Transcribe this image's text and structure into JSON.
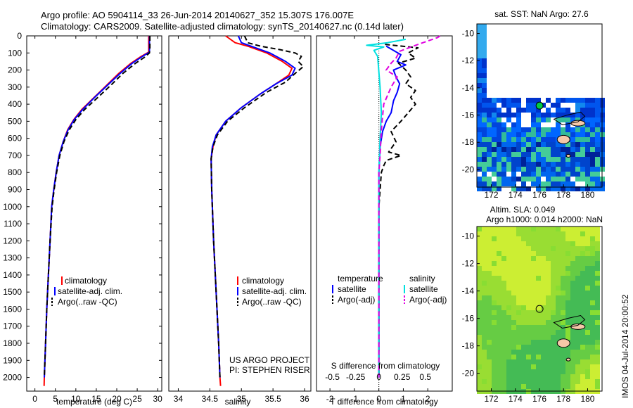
{
  "header": {
    "line1": "Argo profile: AO 5904114_33 26-Jun-2014 20140627_352 15.307S 176.007E",
    "line2": "Climatology: CARS2009. Satellite-adjusted climatology: synTS_20140627.nc (0.14d later)"
  },
  "colors": {
    "climatology": "#ff0000",
    "satellite": "#0000ff",
    "argo": "#000000",
    "sal_satellite": "#00e0e0",
    "sal_argo": "#e000e0"
  },
  "chart_data": [
    {
      "type": "line",
      "name": "temperature",
      "xlabel": "temperature (deg C)",
      "xlim": [
        -2,
        31
      ],
      "ylim": [
        2080,
        0
      ],
      "xticks": [
        0,
        5,
        10,
        15,
        20,
        25,
        30
      ],
      "yticks": [
        0,
        100,
        200,
        300,
        400,
        500,
        600,
        700,
        800,
        900,
        1000,
        1100,
        1200,
        1300,
        1400,
        1500,
        1600,
        1700,
        1800,
        1900,
        2000
      ],
      "legend": [
        "climatology",
        "satellite-adj. clim.",
        "Argo(..raw -QC)"
      ],
      "series": [
        {
          "name": "climatology",
          "style": "solid",
          "color": "#ff0000",
          "points": [
            [
              27.8,
              0
            ],
            [
              27.8,
              60
            ],
            [
              27.8,
              95
            ],
            [
              26,
              120
            ],
            [
              23.5,
              160
            ],
            [
              20.5,
              220
            ],
            [
              17.5,
              290
            ],
            [
              14.5,
              360
            ],
            [
              11.5,
              430
            ],
            [
              9.5,
              490
            ],
            [
              8,
              550
            ],
            [
              6.9,
              620
            ],
            [
              5.9,
              700
            ],
            [
              5.2,
              800
            ],
            [
              4.6,
              900
            ],
            [
              4.1,
              1000
            ],
            [
              3.7,
              1200
            ],
            [
              3.3,
              1400
            ],
            [
              2.9,
              1600
            ],
            [
              2.6,
              1800
            ],
            [
              2.3,
              2000
            ],
            [
              2.25,
              2050
            ]
          ]
        },
        {
          "name": "satellite-adj. clim.",
          "style": "solid",
          "color": "#0000ff",
          "points": [
            [
              28,
              0
            ],
            [
              28,
              60
            ],
            [
              28,
              95
            ],
            [
              26.3,
              120
            ],
            [
              23.8,
              160
            ],
            [
              20.8,
              220
            ],
            [
              17.7,
              290
            ],
            [
              14.6,
              360
            ],
            [
              11.7,
              430
            ],
            [
              9.6,
              490
            ],
            [
              8.1,
              550
            ],
            [
              6.9,
              620
            ],
            [
              5.9,
              700
            ],
            [
              5.2,
              800
            ],
            [
              4.6,
              900
            ],
            [
              4.1,
              1000
            ],
            [
              3.7,
              1200
            ],
            [
              3.3,
              1400
            ],
            [
              2.9,
              1600
            ],
            [
              2.6,
              1800
            ],
            [
              2.3,
              2000
            ]
          ]
        },
        {
          "name": "Argo(..raw -QC)",
          "style": "dashed",
          "color": "#000000",
          "points": [
            [
              28.1,
              0
            ],
            [
              28.1,
              70
            ],
            [
              28,
              100
            ],
            [
              26.8,
              125
            ],
            [
              24.6,
              160
            ],
            [
              21.5,
              220
            ],
            [
              18.5,
              290
            ],
            [
              15.4,
              360
            ],
            [
              12.2,
              430
            ],
            [
              10,
              490
            ],
            [
              8.4,
              550
            ],
            [
              7.1,
              620
            ],
            [
              6.1,
              700
            ],
            [
              5.3,
              800
            ],
            [
              4.7,
              900
            ],
            [
              4.2,
              1000
            ],
            [
              3.7,
              1200
            ],
            [
              3.3,
              1400
            ],
            [
              2.9,
              1600
            ],
            [
              2.6,
              1800
            ],
            [
              2.3,
              2000
            ]
          ]
        }
      ]
    },
    {
      "type": "line",
      "name": "salinity",
      "xlabel": "salinity",
      "xlim": [
        33.85,
        36.1
      ],
      "ylim": [
        2080,
        0
      ],
      "xticks": [
        34,
        34.5,
        35,
        35.5,
        36
      ],
      "legend": [
        "climatology",
        "satellite-adj. clim.",
        "Argo(..raw -QC)"
      ],
      "annotations": [
        "US ARGO PROJECT",
        "PI: STEPHEN RISER"
      ],
      "series": [
        {
          "name": "climatology",
          "style": "solid",
          "color": "#ff0000",
          "points": [
            [
              34.75,
              0
            ],
            [
              34.9,
              40
            ],
            [
              35.1,
              60
            ],
            [
              35.4,
              100
            ],
            [
              35.65,
              150
            ],
            [
              35.8,
              190
            ],
            [
              35.75,
              230
            ],
            [
              35.55,
              280
            ],
            [
              35.3,
              340
            ],
            [
              35,
              420
            ],
            [
              34.75,
              500
            ],
            [
              34.6,
              580
            ],
            [
              34.55,
              650
            ],
            [
              34.52,
              720
            ],
            [
              34.53,
              900
            ],
            [
              34.56,
              1200
            ],
            [
              34.6,
              1500
            ],
            [
              34.64,
              1800
            ],
            [
              34.66,
              2000
            ],
            [
              34.67,
              2050
            ]
          ]
        },
        {
          "name": "satellite-adj. clim.",
          "style": "solid",
          "color": "#0000ff",
          "points": [
            [
              34.95,
              0
            ],
            [
              35,
              40
            ],
            [
              35.15,
              60
            ],
            [
              35.45,
              100
            ],
            [
              35.7,
              150
            ],
            [
              35.85,
              190
            ],
            [
              35.8,
              230
            ],
            [
              35.55,
              280
            ],
            [
              35.3,
              340
            ],
            [
              35,
              420
            ],
            [
              34.75,
              500
            ],
            [
              34.6,
              580
            ],
            [
              34.54,
              650
            ],
            [
              34.52,
              720
            ],
            [
              34.53,
              900
            ],
            [
              34.56,
              1200
            ],
            [
              34.6,
              1500
            ],
            [
              34.64,
              1800
            ],
            [
              34.66,
              2000
            ]
          ]
        },
        {
          "name": "Argo(..raw -QC)",
          "style": "dashed",
          "color": "#000000",
          "points": [
            [
              35.05,
              0
            ],
            [
              35.1,
              40
            ],
            [
              35.3,
              60
            ],
            [
              35.6,
              80
            ],
            [
              35.85,
              100
            ],
            [
              35.95,
              120
            ],
            [
              35.9,
              150
            ],
            [
              35.98,
              180
            ],
            [
              35.85,
              220
            ],
            [
              35.7,
              270
            ],
            [
              35.4,
              330
            ],
            [
              35.05,
              420
            ],
            [
              34.78,
              500
            ],
            [
              34.62,
              580
            ],
            [
              34.55,
              650
            ],
            [
              34.52,
              720
            ],
            [
              34.53,
              900
            ],
            [
              34.56,
              1200
            ],
            [
              34.6,
              1500
            ],
            [
              34.64,
              1800
            ],
            [
              34.66,
              2000
            ]
          ]
        }
      ]
    },
    {
      "type": "line",
      "name": "differences",
      "xlabel": "T difference from climatology",
      "top_label": "S difference from climatology",
      "xlim": [
        -2.55,
        3.0
      ],
      "ylim": [
        2080,
        0
      ],
      "xticks": [
        -2,
        -1,
        0,
        1,
        2
      ],
      "top_ticks": [
        "-0.5",
        "-0.25",
        "0",
        "0.25",
        "0.5"
      ],
      "legend_headers": [
        "temperature",
        "salinity"
      ],
      "legend": [
        "satellite",
        "Argo(-adj)",
        "satellite",
        "Argo(-adj)"
      ],
      "series": [
        {
          "name": "T satellite",
          "style": "solid",
          "color": "#0000ff",
          "points": [
            [
              0.3,
              60
            ],
            [
              0.9,
              110
            ],
            [
              0.75,
              150
            ],
            [
              1.1,
              170
            ],
            [
              0.6,
              200
            ],
            [
              0.7,
              240
            ],
            [
              0.85,
              280
            ],
            [
              0.75,
              330
            ],
            [
              0.6,
              380
            ],
            [
              0.5,
              450
            ],
            [
              0.3,
              500
            ],
            [
              0.15,
              560
            ],
            [
              0.05,
              650
            ],
            [
              0,
              800
            ],
            [
              0,
              1000
            ],
            [
              0,
              1500
            ],
            [
              0,
              2000
            ]
          ]
        },
        {
          "name": "T Argo(-adj)",
          "style": "dashed",
          "color": "#000000",
          "points": [
            [
              0.25,
              50
            ],
            [
              1.6,
              70
            ],
            [
              1.2,
              100
            ],
            [
              1.5,
              130
            ],
            [
              0.8,
              160
            ],
            [
              1.1,
              200
            ],
            [
              1.3,
              240
            ],
            [
              1.1,
              280
            ],
            [
              1.5,
              320
            ],
            [
              1.3,
              360
            ],
            [
              1.5,
              400
            ],
            [
              1.2,
              450
            ],
            [
              0.9,
              500
            ],
            [
              0.5,
              560
            ],
            [
              0.7,
              620
            ],
            [
              0.4,
              680
            ],
            [
              0.9,
              700
            ],
            [
              0.3,
              730
            ],
            [
              0.2,
              760
            ],
            [
              0.1,
              800
            ],
            [
              0,
              1000
            ],
            [
              0,
              1500
            ],
            [
              0,
              2000
            ]
          ]
        },
        {
          "name": "S satellite",
          "style": "solid",
          "color": "#00e0e0",
          "points": [
            [
              1.1,
              20
            ],
            [
              0.35,
              40
            ],
            [
              -0.5,
              55
            ],
            [
              0.2,
              65
            ],
            [
              -0.2,
              85
            ],
            [
              -0.05,
              120
            ],
            [
              0.05,
              300
            ],
            [
              0.1,
              450
            ],
            [
              0.05,
              600
            ],
            [
              0,
              800
            ],
            [
              0,
              1000
            ],
            [
              0,
              1500
            ],
            [
              0,
              2000
            ]
          ]
        },
        {
          "name": "S Argo(-adj)",
          "style": "dashed",
          "color": "#e000e0",
          "points": [
            [
              2.5,
              0
            ],
            [
              2.4,
              10
            ],
            [
              1.4,
              60
            ],
            [
              0.85,
              90
            ],
            [
              0.7,
              130
            ],
            [
              0.5,
              160
            ],
            [
              0.3,
              200
            ],
            [
              0.75,
              240
            ],
            [
              0.5,
              300
            ],
            [
              0.2,
              400
            ],
            [
              0.1,
              550
            ],
            [
              0.05,
              700
            ],
            [
              0,
              800
            ],
            [
              0,
              1000
            ],
            [
              0,
              1500
            ],
            [
              0,
              2000
            ]
          ]
        }
      ]
    },
    {
      "type": "heatmap",
      "name": "sst-map",
      "title": "sat. SST: NaN Argo: 27.6",
      "xticks": [
        172,
        174,
        176,
        178,
        180
      ],
      "yticks": [
        -10,
        -12,
        -14,
        -16,
        -18,
        -20
      ],
      "xlim": [
        170.8,
        181.2
      ],
      "ylim": [
        -21.3,
        -9.3
      ],
      "marker": {
        "lon": 176.007,
        "lat": -15.307
      }
    },
    {
      "type": "heatmap",
      "name": "sla-map",
      "title": "Altim. SLA: 0.049",
      "subtitle": "Argo h1000: 0.014 h2000: NaN",
      "xticks": [
        172,
        174,
        176,
        178,
        180
      ],
      "yticks": [
        -10,
        -12,
        -14,
        -16,
        -18,
        -20
      ],
      "xlim": [
        170.8,
        181.2
      ],
      "ylim": [
        -21.3,
        -9.3
      ],
      "marker": {
        "lon": 176.007,
        "lat": -15.307
      }
    }
  ],
  "footer": {
    "stamp": "IMOS 04-Jul-2014 20:00:52"
  }
}
